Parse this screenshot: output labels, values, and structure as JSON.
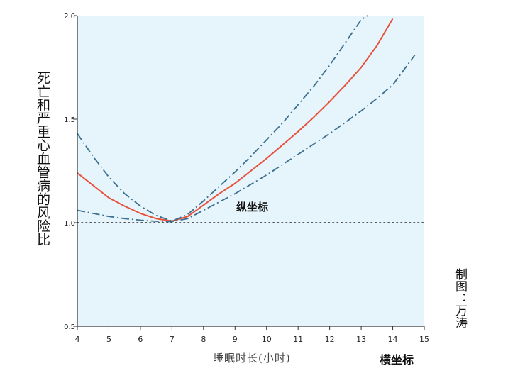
{
  "chart_data": {
    "type": "line",
    "title": "",
    "xlabel": "睡眠时长(小时)",
    "ylabel": "死亡和严重心血管病的风险比",
    "xlim": [
      4,
      15
    ],
    "ylim": [
      0.5,
      2.0
    ],
    "xticks": [
      "4",
      "5",
      "6",
      "7",
      "8",
      "9",
      "10",
      "11",
      "12",
      "13",
      "14",
      "15"
    ],
    "yticks": [
      "0.5",
      "1.0",
      "1.5",
      "2.0"
    ],
    "reference_line": 1.0,
    "grid": false,
    "background_color": "#e6f4fb",
    "series": [
      {
        "name": "",
        "style": "solid",
        "color": "#e8503a",
        "x": [
          4,
          4.5,
          5,
          5.5,
          6,
          6.5,
          7,
          7.5,
          8,
          8.5,
          9,
          9.5,
          10,
          10.5,
          11,
          11.5,
          12,
          12.5,
          13,
          13.5,
          14
        ],
        "y": [
          1.24,
          1.18,
          1.12,
          1.08,
          1.045,
          1.02,
          1.008,
          1.03,
          1.085,
          1.14,
          1.19,
          1.25,
          1.31,
          1.375,
          1.44,
          1.51,
          1.585,
          1.665,
          1.75,
          1.855,
          1.985
        ]
      },
      {
        "name": "",
        "style": "dash-dot",
        "color": "#3a6f8f",
        "x": [
          4,
          4.5,
          5,
          5.5,
          6,
          6.5,
          7,
          7.5,
          8,
          8.5,
          9,
          9.5,
          10,
          10.5,
          11,
          11.5,
          12,
          12.5,
          13,
          13.2
        ],
        "y": [
          1.43,
          1.32,
          1.22,
          1.14,
          1.08,
          1.035,
          1.008,
          1.04,
          1.105,
          1.175,
          1.245,
          1.32,
          1.4,
          1.48,
          1.57,
          1.66,
          1.76,
          1.87,
          1.98,
          2.0
        ]
      },
      {
        "name": "",
        "style": "dash-dot",
        "color": "#3a6f8f",
        "x": [
          4,
          4.5,
          5,
          5.5,
          6,
          6.5,
          7,
          7.5,
          8,
          8.5,
          9,
          9.5,
          10,
          10.5,
          11,
          11.5,
          12,
          12.5,
          13,
          13.5,
          14,
          14.7
        ],
        "y": [
          1.06,
          1.045,
          1.03,
          1.02,
          1.012,
          1.007,
          1.005,
          1.02,
          1.06,
          1.1,
          1.14,
          1.185,
          1.23,
          1.28,
          1.33,
          1.38,
          1.43,
          1.485,
          1.54,
          1.6,
          1.665,
          1.81
        ]
      }
    ],
    "annotations": [
      "纵坐标",
      "横坐标"
    ],
    "credit": "制图：万涛"
  },
  "labels": {
    "ylabel": "死亡和严重心血管病的风险比",
    "xlabel": "睡眠时长(小时)",
    "xcaption": "横坐标",
    "ycaption": "纵坐标",
    "credit": "制图：万涛"
  }
}
